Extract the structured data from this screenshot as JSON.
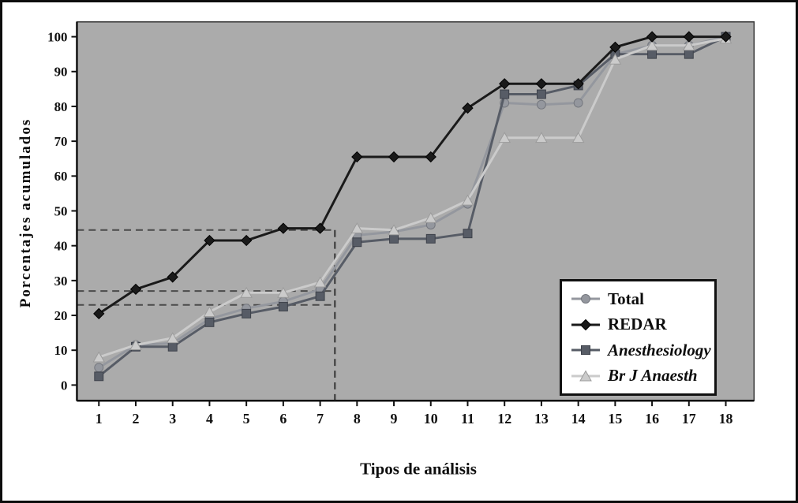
{
  "figure": {
    "ylabel": "Porcentajes acumulados",
    "xlabel": "Tipos de análisis"
  },
  "legend": {
    "items": [
      {
        "label": "Total",
        "marker": "circle",
        "color": "#94979e",
        "edge": "#74777e",
        "italic": false
      },
      {
        "label": "REDAR",
        "marker": "diamond",
        "color": "#1a1a1a",
        "edge": "#000000",
        "italic": false
      },
      {
        "label": "Anesthesiology",
        "marker": "square",
        "color": "#575c66",
        "edge": "#3d414a",
        "italic": true
      },
      {
        "label": "Br J Anaesth",
        "marker": "triangle",
        "color": "#cbcbcb",
        "edge": "#9b9b9b",
        "italic": true
      }
    ]
  },
  "chart_data": {
    "type": "line",
    "title": "",
    "xlabel": "Tipos de análisis",
    "ylabel": "Porcentajes acumulados",
    "x": [
      1,
      2,
      3,
      4,
      5,
      6,
      7,
      8,
      9,
      10,
      11,
      12,
      13,
      14,
      15,
      16,
      17,
      18
    ],
    "ylim": [
      0,
      100
    ],
    "yticks": [
      0,
      10,
      20,
      30,
      40,
      50,
      60,
      70,
      80,
      90,
      100
    ],
    "plot_bg": "#ababab",
    "legend_position": "bottom-right-inside",
    "series": [
      {
        "name": "Total",
        "marker": "circle",
        "color": "#94979e",
        "edge": "#74777e",
        "values": [
          5,
          11.5,
          12,
          19,
          22,
          24,
          27.5,
          43,
          44,
          46,
          52,
          81,
          80.5,
          81,
          95,
          97.5,
          97.5,
          100
        ]
      },
      {
        "name": "Anesthesiology",
        "marker": "square",
        "color": "#575c66",
        "edge": "#3d414a",
        "values": [
          2.5,
          11,
          11,
          18,
          20.5,
          22.5,
          25.5,
          41,
          42,
          42,
          43.5,
          83.5,
          83.5,
          86,
          95,
          95,
          95,
          100
        ]
      },
      {
        "name": "Br J Anaesth",
        "marker": "triangle",
        "color": "#cbcbcb",
        "edge": "#9b9b9b",
        "values": [
          8,
          11.5,
          13.5,
          21,
          26.5,
          26.5,
          29.5,
          45,
          44.5,
          48,
          53,
          71,
          71,
          71,
          93.5,
          97.5,
          97.5,
          99.5
        ]
      },
      {
        "name": "REDAR",
        "marker": "diamond",
        "color": "#1a1a1a",
        "edge": "#000000",
        "values": [
          20.5,
          27.5,
          31,
          41.5,
          41.5,
          45,
          45,
          65.5,
          65.5,
          65.5,
          79.5,
          86.5,
          86.5,
          86.5,
          97,
          100,
          100,
          100
        ]
      }
    ],
    "guides": {
      "h": [
        {
          "y": 44.5,
          "x_end": 7.4
        },
        {
          "y": 27,
          "x_end": 7.4
        },
        {
          "y": 23,
          "x_end": 7.4
        }
      ],
      "v": [
        {
          "x": 7.4,
          "y_top": 44.5
        }
      ]
    }
  }
}
